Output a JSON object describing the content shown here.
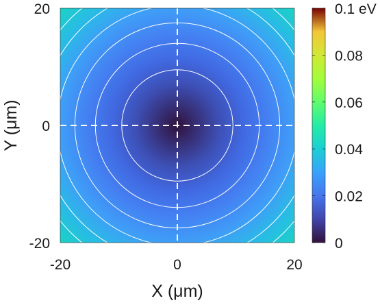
{
  "chart_data": {
    "type": "heatmap",
    "description_units": "potential energy map, value grows radially from center",
    "xlabel": "X (μm)",
    "ylabel": "Y (μm)",
    "xlim": [
      -20,
      20
    ],
    "ylim": [
      -20,
      20
    ],
    "x_ticks": [
      "-20",
      "0",
      "20"
    ],
    "y_ticks": [
      "-20",
      "0",
      "20"
    ],
    "colorbar": {
      "range": [
        0,
        0.1
      ],
      "tick_labels": [
        "0",
        "0.02",
        "0.04",
        "0.06",
        "0.08",
        "0.1 eV"
      ],
      "tick_values": [
        0,
        0.02,
        0.04,
        0.06,
        0.08,
        0.1
      ],
      "colormap": "turbo"
    },
    "field": {
      "form": "radial",
      "center": [
        0,
        0
      ],
      "value_at_radius_20um": 0.0194,
      "value_at_corner": 0.0388
    },
    "contours": {
      "color": "#ffffff",
      "radii_um": [
        9.5,
        14,
        17.5,
        20.5,
        23.3,
        25.8
      ]
    },
    "crosshair": {
      "x": 0,
      "y": 0,
      "style": "dashed",
      "color": "#ffffff"
    }
  }
}
